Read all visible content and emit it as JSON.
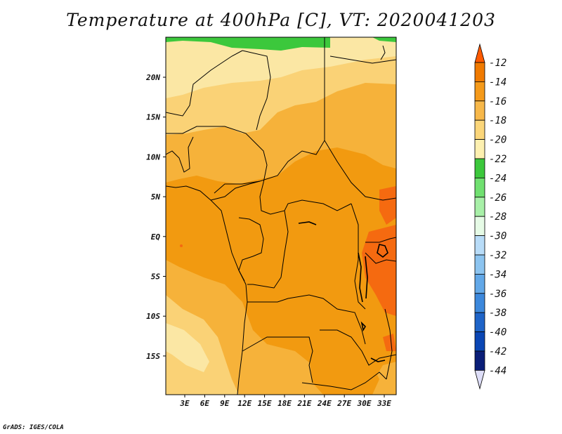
{
  "title": "Temperature at 400hPa [C], VT: 2020041203",
  "credit": "GrADS: IGES/COLA",
  "lat_labels": [
    "20N",
    "15N",
    "10N",
    "5N",
    "EQ",
    "5S",
    "10S",
    "15S"
  ],
  "lon_labels": [
    "3E",
    "6E",
    "9E",
    "12E",
    "15E",
    "18E",
    "21E",
    "24E",
    "27E",
    "30E",
    "33E"
  ],
  "colorbar": {
    "labels": [
      "-12",
      "-14",
      "-16",
      "-18",
      "-20",
      "-22",
      "-24",
      "-26",
      "-28",
      "-30",
      "-32",
      "-34",
      "-36",
      "-38",
      "-40",
      "-42",
      "-44"
    ],
    "colors": [
      "#ff5a00",
      "#f07a00",
      "#f59a1a",
      "#f7b84a",
      "#fbd67a",
      "#fdf0b0",
      "#3cc83c",
      "#70e070",
      "#a8f0a8",
      "#e6fbe6",
      "#b8dcf8",
      "#8cc4f0",
      "#62a8e8",
      "#3c88dc",
      "#1e64c8",
      "#0a46b4",
      "#0a1e78"
    ],
    "bottom_arrow_color": "#dedef8"
  },
  "map_colors": {
    "minus12": "#f56a10",
    "minus14": "#f29a10",
    "minus16": "#f6b23a",
    "minus18": "#fad276",
    "minus20": "#fbe7a4",
    "minus24": "#3cc83c"
  }
}
